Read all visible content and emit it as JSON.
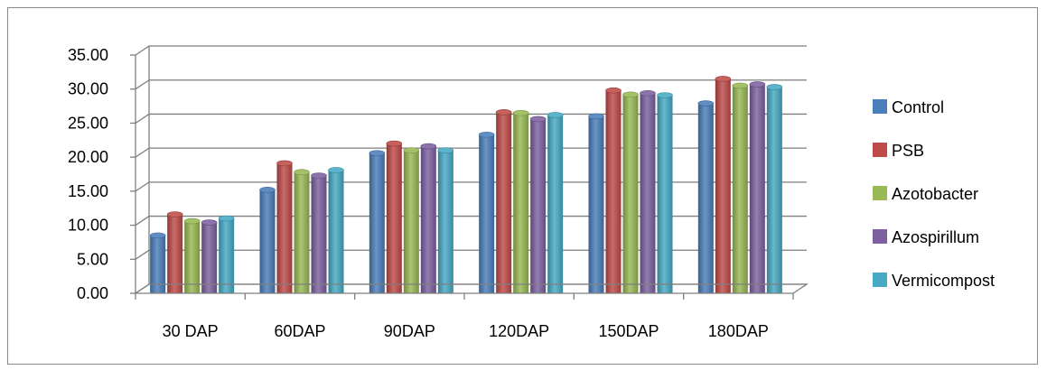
{
  "chart_data": {
    "type": "bar",
    "categories": [
      "30 DAP",
      "60DAP",
      "90DAP",
      "120DAP",
      "150DAP",
      "180DAP"
    ],
    "series": [
      {
        "name": "Control",
        "color": "#4a7ebb",
        "values": [
          8.5,
          15.2,
          20.6,
          23.3,
          26.0,
          27.9
        ]
      },
      {
        "name": "PSB",
        "color": "#be4b48",
        "values": [
          11.6,
          19.1,
          22.0,
          26.6,
          29.8,
          31.5
        ]
      },
      {
        "name": "Azotobacter",
        "color": "#98b954",
        "values": [
          10.6,
          17.8,
          21.0,
          26.5,
          29.2,
          30.5
        ]
      },
      {
        "name": "Azospirillum",
        "color": "#7d60a0",
        "values": [
          10.4,
          17.3,
          21.6,
          25.6,
          29.4,
          30.7
        ]
      },
      {
        "name": "Vermicompost",
        "color": "#46aac5",
        "values": [
          11.0,
          18.1,
          21.0,
          26.2,
          29.1,
          30.3
        ]
      }
    ],
    "yticks": [
      "0.00",
      "5.00",
      "10.00",
      "15.00",
      "20.00",
      "25.00",
      "30.00",
      "35.00"
    ],
    "ylim": [
      0,
      35
    ],
    "grid": true,
    "legend": "right"
  }
}
